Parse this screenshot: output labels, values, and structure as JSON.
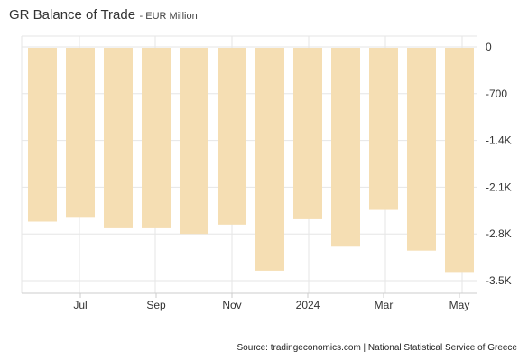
{
  "header": {
    "title": "GR Balance of Trade",
    "subtitle": "- EUR Million"
  },
  "footer": {
    "source": "Source: tradingeconomics.com | National Statistical Service of Greece"
  },
  "chart_data": {
    "type": "bar",
    "title": "GR Balance of Trade",
    "subtitle": "- EUR Million",
    "categories": [
      "2023-06",
      "2023-07",
      "2023-08",
      "2023-09",
      "2023-10",
      "2023-11",
      "2023-12",
      "2024-01",
      "2024-02",
      "2024-03",
      "2024-04",
      "2024-05"
    ],
    "values": [
      -2615,
      -2545,
      -2715,
      -2715,
      -2800,
      -2660,
      -3350,
      -2580,
      -2990,
      -2440,
      -3050,
      -3370
    ],
    "x_tick_labels": [
      {
        "label": "Jul",
        "category": "2023-07"
      },
      {
        "label": "Sep",
        "category": "2023-09"
      },
      {
        "label": "Nov",
        "category": "2023-11"
      },
      {
        "label": "2024",
        "category": "2024-01"
      },
      {
        "label": "Mar",
        "category": "2024-03"
      },
      {
        "label": "May",
        "category": "2024-05"
      }
    ],
    "y_ticks": [
      0,
      -700,
      -1400,
      -2100,
      -2800,
      -3500
    ],
    "y_tick_labels": [
      "0",
      "-700",
      "-1.4K",
      "-2.1K",
      "-2.8K",
      "-3.5K"
    ],
    "ylim": [
      -3500,
      0
    ],
    "y_axis_side": "right",
    "grid": true,
    "bar_color": "#f5deb3",
    "grid_color": "#e6e6e6",
    "axis_color": "#cccccc"
  }
}
